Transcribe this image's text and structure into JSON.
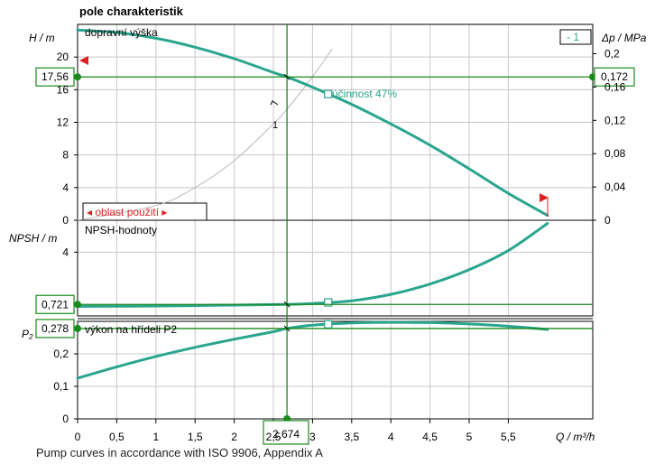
{
  "title": "pole charakteristik",
  "footnote": "Pump curves in accordance with ISO 9906, Appendix A",
  "colors": {
    "curve": "#2aa58e",
    "operating_point": "#1a8a1a",
    "limit": "#e02020",
    "grid": "#c8c8c8",
    "axis": "#000000"
  },
  "chart_data": [
    {
      "type": "line",
      "id": "head",
      "axis_label_left": "H / m",
      "axis_label_right": "Δp / MPa",
      "panel_label": "dopravní výška",
      "badge": "- 1",
      "system_curve_label": "1",
      "efficiency_label": "účinnost  47%",
      "usage_range_label": "◂ oblast použití ▸",
      "xlim": [
        0,
        6.5
      ],
      "ylim": [
        0,
        24
      ],
      "yticks": [
        0,
        4,
        8,
        12,
        16,
        20
      ],
      "ytick_labels_right": [
        "0",
        "0,04",
        "0,08",
        "0,12",
        "0,16",
        "0,2"
      ],
      "right_tick_values": [
        0,
        4.08,
        8.16,
        12.24,
        16.32,
        20.4
      ],
      "series": [
        {
          "x": [
            0,
            0.5,
            1,
            1.5,
            2,
            2.5,
            2.674,
            3,
            3.5,
            4,
            4.5,
            5,
            5.5,
            6
          ],
          "y": [
            23.3,
            23.0,
            22.3,
            21.2,
            19.8,
            18.1,
            17.56,
            16.3,
            14.2,
            11.8,
            9.2,
            6.3,
            3.3,
            0.6
          ]
        }
      ],
      "system_curve": {
        "x": [
          0,
          1,
          1.5,
          2,
          2.5,
          2.674,
          3,
          3.2,
          3.25
        ],
        "y": [
          0,
          1.8,
          4.0,
          7.3,
          11.8,
          13.6,
          17.6,
          20.3,
          21.0
        ]
      },
      "operating_point": {
        "x": 2.674,
        "y": 17.56,
        "label": "17,56",
        "right_label": "0,172"
      }
    },
    {
      "type": "line",
      "id": "npsh",
      "axis_label_left": "NPSH / m",
      "panel_label": "NPSH-hodnoty",
      "xlim": [
        0,
        6.5
      ],
      "ylim": [
        0,
        6
      ],
      "yticks": [
        4
      ],
      "series": [
        {
          "x": [
            0,
            1,
            2,
            2.674,
            3,
            3.5,
            4,
            4.5,
            5,
            5.5,
            6
          ],
          "y": [
            0.6,
            0.62,
            0.68,
            0.721,
            0.78,
            0.95,
            1.35,
            2.0,
            2.9,
            4.1,
            5.8
          ]
        }
      ],
      "operating_point": {
        "x": 2.674,
        "y": 0.721,
        "label": "0,721"
      }
    },
    {
      "type": "line",
      "id": "power",
      "axis_label_left": "P₂",
      "panel_label": "výkon na hřídeli P2",
      "xlim": [
        0,
        6.5
      ],
      "ylim": [
        0,
        0.3
      ],
      "yticks": [
        0,
        0.1,
        0.2
      ],
      "ytick_labels": [
        "0",
        "0,1",
        "0,2"
      ],
      "series": [
        {
          "x": [
            0,
            0.5,
            1,
            1.5,
            2,
            2.5,
            2.674,
            3,
            3.5,
            4,
            4.5,
            5,
            5.5,
            6
          ],
          "y": [
            0.125,
            0.16,
            0.192,
            0.22,
            0.245,
            0.268,
            0.278,
            0.288,
            0.295,
            0.297,
            0.296,
            0.292,
            0.285,
            0.275
          ]
        }
      ],
      "operating_point": {
        "x": 2.674,
        "y": 0.278,
        "label": "0,278"
      }
    }
  ],
  "x_axis": {
    "label": "Q / m³/h",
    "ticks": [
      0,
      0.5,
      1,
      1.5,
      2,
      2.5,
      3,
      3.5,
      4,
      4.5,
      5,
      5.5
    ],
    "tick_labels": [
      "0",
      "0,5",
      "1",
      "1,5",
      "2",
      "2,5",
      "3",
      "3,5",
      "4",
      "4,5",
      "5",
      "5,5"
    ],
    "operating_label": "2,674"
  },
  "efficiency_marker_x": 3.2
}
